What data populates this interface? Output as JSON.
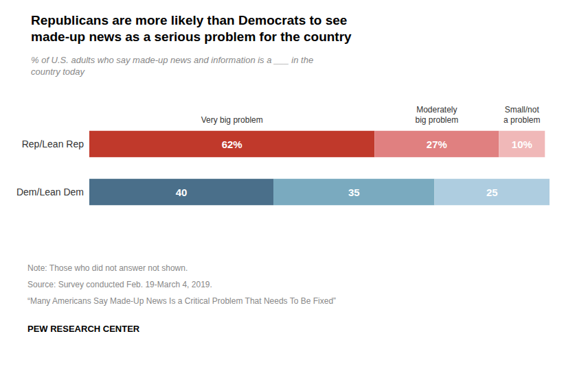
{
  "chart_data": {
    "type": "bar",
    "orientation": "horizontal",
    "stacked": true,
    "title": "Republicans are more likely than Democrats to see\nmade-up news as a serious problem for the country",
    "subtitle": "% of U.S. adults who say made-up news and information is a ___ in the\ncountry today",
    "categories": [
      "Rep/Lean Rep",
      "Dem/Lean Dem"
    ],
    "series": [
      {
        "name": "Very big problem",
        "values": [
          62,
          40
        ],
        "value_labels": [
          "62%",
          "40"
        ],
        "colors": [
          "#c0392b",
          "#4a6f8a"
        ]
      },
      {
        "name": "Moderately\nbig problem",
        "values": [
          27,
          35
        ],
        "value_labels": [
          "27%",
          "35"
        ],
        "colors": [
          "#e08080",
          "#7aaabf"
        ]
      },
      {
        "name": "Small/not\na problem",
        "values": [
          10,
          25
        ],
        "value_labels": [
          "10%",
          "25"
        ],
        "colors": [
          "#f0b8b8",
          "#aecde0"
        ]
      }
    ],
    "xlim": [
      0,
      100
    ],
    "data_labels": true,
    "tick_labels": "y",
    "grid": false,
    "notes": [
      "Note: Those who did not answer not shown.",
      "Source: Survey conducted Feb. 19-March 4, 2019.",
      "“Many Americans Say Made-Up News Is a Critical Problem That Needs To Be Fixed”"
    ],
    "source": "PEW RESEARCH CENTER"
  }
}
